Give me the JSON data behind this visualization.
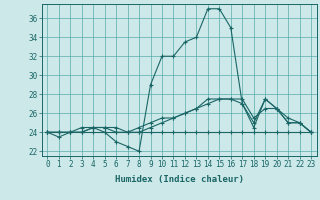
{
  "xlabel": "Humidex (Indice chaleur)",
  "background_color": "#cce8e9",
  "grid_color": "#5aabab",
  "line_color": "#1a6666",
  "xlim": [
    -0.5,
    23.5
  ],
  "ylim": [
    21.5,
    37.5
  ],
  "yticks": [
    22,
    24,
    26,
    28,
    30,
    32,
    34,
    36
  ],
  "xticks": [
    0,
    1,
    2,
    3,
    4,
    5,
    6,
    7,
    8,
    9,
    10,
    11,
    12,
    13,
    14,
    15,
    16,
    17,
    18,
    19,
    20,
    21,
    22,
    23
  ],
  "series": [
    [
      24.0,
      23.5,
      24.0,
      24.5,
      24.5,
      24.0,
      23.0,
      22.5,
      22.0,
      29.0,
      32.0,
      32.0,
      33.5,
      34.0,
      37.0,
      37.0,
      35.0,
      27.0,
      24.5,
      27.5,
      26.5,
      25.0,
      25.0,
      24.0
    ],
    [
      24.0,
      24.0,
      24.0,
      24.0,
      24.5,
      24.5,
      24.0,
      24.0,
      24.5,
      25.0,
      25.5,
      25.5,
      26.0,
      26.5,
      27.5,
      27.5,
      27.5,
      27.0,
      25.0,
      27.5,
      26.5,
      25.0,
      25.0,
      24.0
    ],
    [
      24.0,
      24.0,
      24.0,
      24.0,
      24.5,
      24.5,
      24.5,
      24.0,
      24.0,
      24.5,
      25.0,
      25.5,
      26.0,
      26.5,
      27.0,
      27.5,
      27.5,
      27.5,
      25.5,
      26.5,
      26.5,
      25.5,
      25.0,
      24.0
    ],
    [
      24.0,
      24.0,
      24.0,
      24.0,
      24.0,
      24.0,
      24.0,
      24.0,
      24.0,
      24.0,
      24.0,
      24.0,
      24.0,
      24.0,
      24.0,
      24.0,
      24.0,
      24.0,
      24.0,
      24.0,
      24.0,
      24.0,
      24.0,
      24.0
    ]
  ],
  "marker": "+",
  "markersize": 3,
  "linewidth": 0.8,
  "tick_fontsize": 5.5,
  "xlabel_fontsize": 6.5
}
